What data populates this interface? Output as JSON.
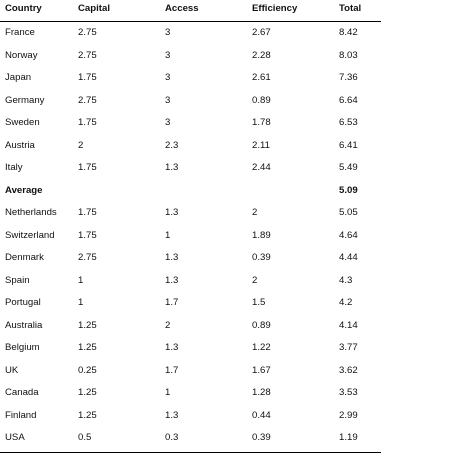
{
  "table": {
    "headers": [
      "Country",
      "Capital",
      "Access",
      "Efficiency",
      "Total"
    ],
    "rows": [
      [
        "France",
        "2.75",
        "3",
        "2.67",
        "8.42"
      ],
      [
        "Norway",
        "2.75",
        "3",
        "2.28",
        "8.03"
      ],
      [
        "Japan",
        "1.75",
        "3",
        "2.61",
        "7.36"
      ],
      [
        "Germany",
        "2.75",
        "3",
        "0.89",
        "6.64"
      ],
      [
        "Sweden",
        "1.75",
        "3",
        "1.78",
        "6.53"
      ],
      [
        "Austria",
        "2",
        "2.3",
        "2.11",
        "6.41"
      ],
      [
        "Italy",
        "1.75",
        "1.3",
        "2.44",
        "5.49"
      ],
      [
        "Average",
        "",
        "",
        "",
        "5.09"
      ],
      [
        "Netherlands",
        "1.75",
        "1.3",
        "2",
        "5.05"
      ],
      [
        "Switzerland",
        "1.75",
        "1",
        "1.89",
        "4.64"
      ],
      [
        "Denmark",
        "2.75",
        "1.3",
        "0.39",
        "4.44"
      ],
      [
        "Spain",
        "1",
        "1.3",
        "2",
        "4.3"
      ],
      [
        "Portugal",
        "1",
        "1.7",
        "1.5",
        "4.2"
      ],
      [
        "Australia",
        "1.25",
        "2",
        "0.89",
        "4.14"
      ],
      [
        "Belgium",
        "1.25",
        "1.3",
        "1.22",
        "3.77"
      ],
      [
        "UK",
        "0.25",
        "1.7",
        "1.67",
        "3.62"
      ],
      [
        "Canada",
        "1.25",
        "1",
        "1.28",
        "3.53"
      ],
      [
        "Finland",
        "1.25",
        "1.3",
        "0.44",
        "2.99"
      ],
      [
        "USA",
        "0.5",
        "0.3",
        "0.39",
        "1.19"
      ]
    ]
  }
}
